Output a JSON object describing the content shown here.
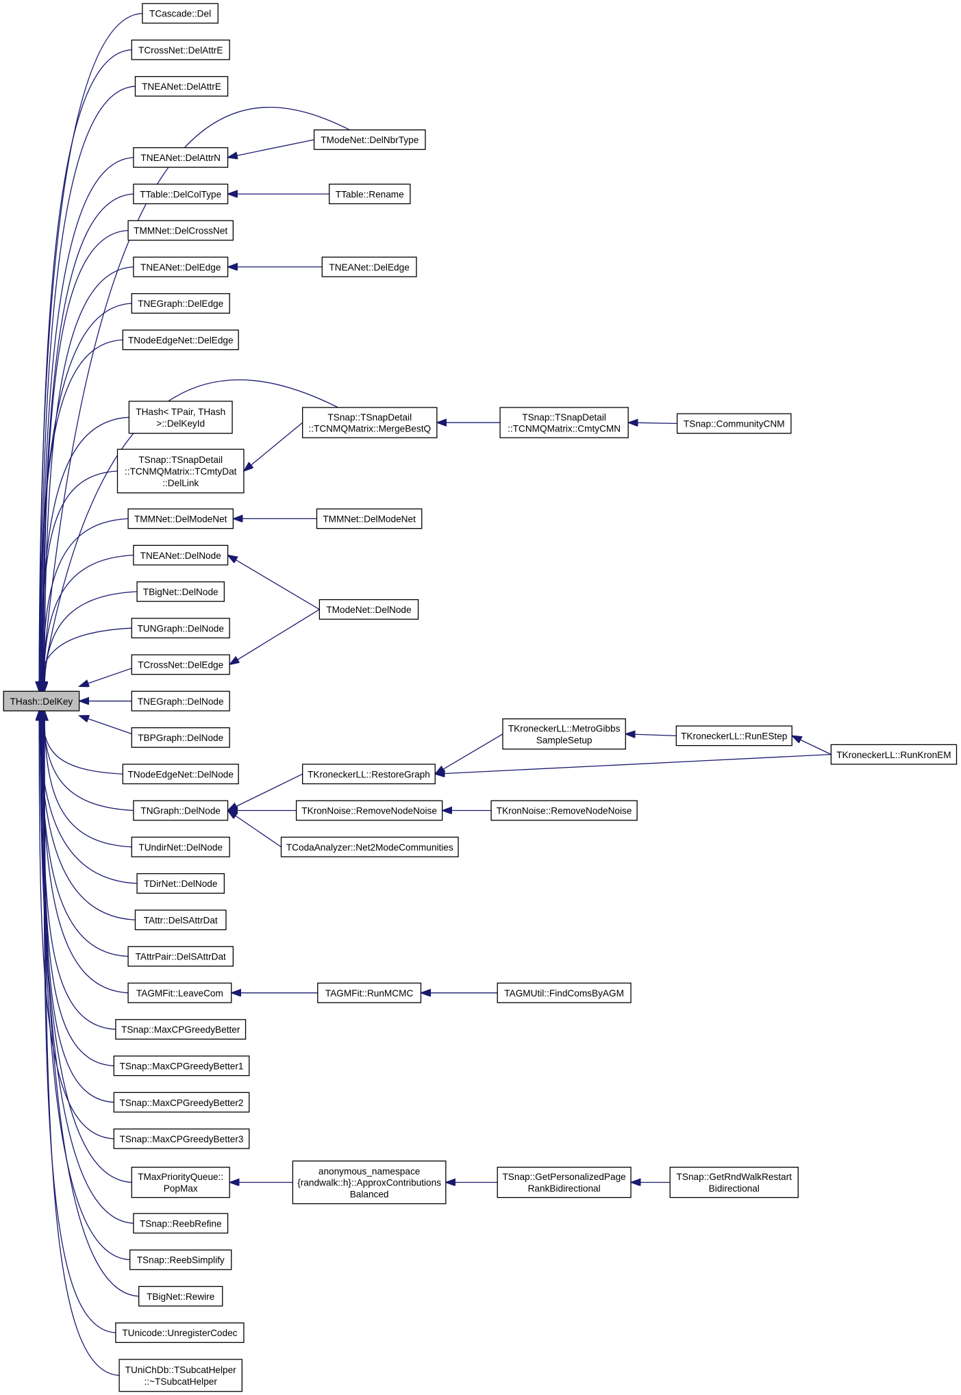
{
  "title": "THash::DelKey caller graph",
  "colors": {
    "edge": "#191970",
    "root_fill": "#bfbfbf",
    "node_fill": "#ffffff",
    "node_border": "#000000"
  },
  "nodes": [
    {
      "lines": [
        "THash::DelKey"
      ],
      "root": true
    },
    {
      "lines": [
        "TCascade::Del"
      ]
    },
    {
      "lines": [
        "TCrossNet::DelAttrE"
      ]
    },
    {
      "lines": [
        "TNEANet::DelAttrE"
      ]
    },
    {
      "lines": [
        "TNEANet::DelAttrN"
      ]
    },
    {
      "lines": [
        "TTable::DelColType"
      ]
    },
    {
      "lines": [
        "TMMNet::DelCrossNet"
      ]
    },
    {
      "lines": [
        "TNEANet::DelEdge"
      ]
    },
    {
      "lines": [
        "TNEGraph::DelEdge"
      ]
    },
    {
      "lines": [
        "TNodeEdgeNet::DelEdge"
      ]
    },
    {
      "lines": [
        "THash< TPair, THash",
        ">::DelKeyId"
      ]
    },
    {
      "lines": [
        "TSnap::TSnapDetail",
        "::TCNMQMatrix::TCmtyDat",
        "::DelLink"
      ]
    },
    {
      "lines": [
        "TMMNet::DelModeNet"
      ]
    },
    {
      "lines": [
        "TNEANet::DelNode"
      ]
    },
    {
      "lines": [
        "TBigNet::DelNode"
      ]
    },
    {
      "lines": [
        "TUNGraph::DelNode"
      ]
    },
    {
      "lines": [
        "TCrossNet::DelEdge"
      ]
    },
    {
      "lines": [
        "TNEGraph::DelNode"
      ]
    },
    {
      "lines": [
        "TBPGraph::DelNode"
      ]
    },
    {
      "lines": [
        "TNodeEdgeNet::DelNode"
      ]
    },
    {
      "lines": [
        "TNGraph::DelNode"
      ]
    },
    {
      "lines": [
        "TUndirNet::DelNode"
      ]
    },
    {
      "lines": [
        "TDirNet::DelNode"
      ]
    },
    {
      "lines": [
        "TAttr::DelSAttrDat"
      ]
    },
    {
      "lines": [
        "TAttrPair::DelSAttrDat"
      ]
    },
    {
      "lines": [
        "TAGMFit::LeaveCom"
      ]
    },
    {
      "lines": [
        "TSnap::MaxCPGreedyBetter"
      ]
    },
    {
      "lines": [
        "TSnap::MaxCPGreedyBetter1"
      ]
    },
    {
      "lines": [
        "TSnap::MaxCPGreedyBetter2"
      ]
    },
    {
      "lines": [
        "TSnap::MaxCPGreedyBetter3"
      ]
    },
    {
      "lines": [
        "TMaxPriorityQueue::",
        "PopMax"
      ]
    },
    {
      "lines": [
        "TSnap::ReebRefine"
      ]
    },
    {
      "lines": [
        "TSnap::ReebSimplify"
      ]
    },
    {
      "lines": [
        "TBigNet::Rewire"
      ]
    },
    {
      "lines": [
        "TUnicode::UnregisterCodec"
      ]
    },
    {
      "lines": [
        "TUniChDb::TSubcatHelper",
        "::~TSubcatHelper"
      ]
    },
    {
      "lines": [
        "TModeNet::DelNbrType"
      ]
    },
    {
      "lines": [
        "TTable::Rename"
      ]
    },
    {
      "lines": [
        "TNEANet::DelEdge"
      ]
    },
    {
      "lines": [
        "TSnap::TSnapDetail",
        "::TCNMQMatrix::MergeBestQ"
      ]
    },
    {
      "lines": [
        "TMMNet::DelModeNet"
      ]
    },
    {
      "lines": [
        "TModeNet::DelNode"
      ]
    },
    {
      "lines": [
        "TKroneckerLL::RestoreGraph"
      ]
    },
    {
      "lines": [
        "TKronNoise::RemoveNodeNoise"
      ]
    },
    {
      "lines": [
        "TCodaAnalyzer::Net2ModeCommunities"
      ]
    },
    {
      "lines": [
        "TAGMFit::RunMCMC"
      ]
    },
    {
      "lines": [
        "anonymous_namespace",
        "{randwalk::h}::ApproxContributions",
        "Balanced"
      ]
    },
    {
      "lines": [
        "TSnap::TSnapDetail",
        "::TCNMQMatrix::CmtyCMN"
      ]
    },
    {
      "lines": [
        "TKroneckerLL::MetroGibbs",
        "SampleSetup"
      ]
    },
    {
      "lines": [
        "TKronNoise::RemoveNodeNoise"
      ]
    },
    {
      "lines": [
        "TAGMUtil::FindComsByAGM"
      ]
    },
    {
      "lines": [
        "TSnap::GetPersonalizedPage",
        "RankBidirectional"
      ]
    },
    {
      "lines": [
        "TSnap::CommunityCNM"
      ]
    },
    {
      "lines": [
        "TKroneckerLL::RunEStep"
      ]
    },
    {
      "lines": [
        "TSnap::GetRndWalkRestart",
        "Bidirectional"
      ]
    },
    {
      "lines": [
        "TKroneckerLL::RunKronEM"
      ]
    }
  ],
  "edges": [
    [
      1,
      0
    ],
    [
      2,
      0
    ],
    [
      3,
      0
    ],
    [
      4,
      0
    ],
    [
      5,
      0
    ],
    [
      6,
      0
    ],
    [
      7,
      0
    ],
    [
      8,
      0
    ],
    [
      9,
      0
    ],
    [
      10,
      0
    ],
    [
      11,
      0
    ],
    [
      12,
      0
    ],
    [
      13,
      0
    ],
    [
      14,
      0
    ],
    [
      15,
      0
    ],
    [
      16,
      0
    ],
    [
      17,
      0
    ],
    [
      18,
      0
    ],
    [
      19,
      0
    ],
    [
      20,
      0
    ],
    [
      21,
      0
    ],
    [
      22,
      0
    ],
    [
      23,
      0
    ],
    [
      24,
      0
    ],
    [
      25,
      0
    ],
    [
      26,
      0
    ],
    [
      27,
      0
    ],
    [
      28,
      0
    ],
    [
      29,
      0
    ],
    [
      30,
      0
    ],
    [
      31,
      0
    ],
    [
      32,
      0
    ],
    [
      33,
      0
    ],
    [
      34,
      0
    ],
    [
      35,
      0
    ],
    [
      36,
      4
    ],
    [
      36,
      0
    ],
    [
      37,
      5
    ],
    [
      38,
      7
    ],
    [
      39,
      11
    ],
    [
      39,
      0
    ],
    [
      40,
      12
    ],
    [
      41,
      13
    ],
    [
      41,
      16
    ],
    [
      42,
      20
    ],
    [
      43,
      20
    ],
    [
      44,
      20
    ],
    [
      45,
      25
    ],
    [
      46,
      30
    ],
    [
      47,
      39
    ],
    [
      48,
      42
    ],
    [
      49,
      43
    ],
    [
      50,
      45
    ],
    [
      51,
      46
    ],
    [
      52,
      47
    ],
    [
      53,
      48
    ],
    [
      54,
      51
    ],
    [
      55,
      53
    ],
    [
      55,
      42
    ]
  ]
}
